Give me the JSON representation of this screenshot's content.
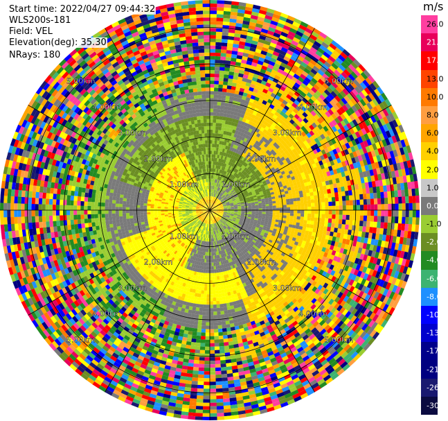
{
  "info": {
    "start_time": "Start time: 2022/04/27 09:44:32",
    "instrument": "WLS200s-181",
    "field": "Field: VEL",
    "elevation": "Elevation(deg): 35.30",
    "nrays": "NRays: 180"
  },
  "colorbar": {
    "unit": "m/s",
    "ticks": [
      "26.0",
      "21.0",
      "17.0",
      "13.0",
      "10.0",
      "8.0",
      "6.0",
      "4.0",
      "2.0",
      "1.0",
      "0.0",
      "-1.0",
      "-2.0",
      "-4.0",
      "-6.0",
      "-8.0",
      "-10.0",
      "-13.0",
      "-17.0",
      "-21.0",
      "-26.0",
      "-30.0"
    ],
    "colors": [
      "#ff3ea0",
      "#e8005a",
      "#ff0000",
      "#ff4500",
      "#ff7a00",
      "#ff9e40",
      "#ffa500",
      "#ffd000",
      "#ffff00",
      "#c8c8c8",
      "#7a7a7a",
      "#9acd32",
      "#6b8e23",
      "#228b22",
      "#3cb371",
      "#1e90ff",
      "#0000ff",
      "#0000cd",
      "#00008b",
      "#000080",
      "#191970",
      "#0b0b40"
    ]
  },
  "chart_data": {
    "type": "heatmap",
    "title": "",
    "field": "VEL",
    "rings_km": [
      1.0,
      2.0,
      3.0,
      4.0,
      5.0
    ],
    "ring_labels": [
      "1.00km",
      "2.00km",
      "3.00km",
      "4.00km",
      "5.00km"
    ],
    "nrays": 180,
    "max_range_km": 5.75,
    "spokes": 12,
    "units": "m/s"
  }
}
